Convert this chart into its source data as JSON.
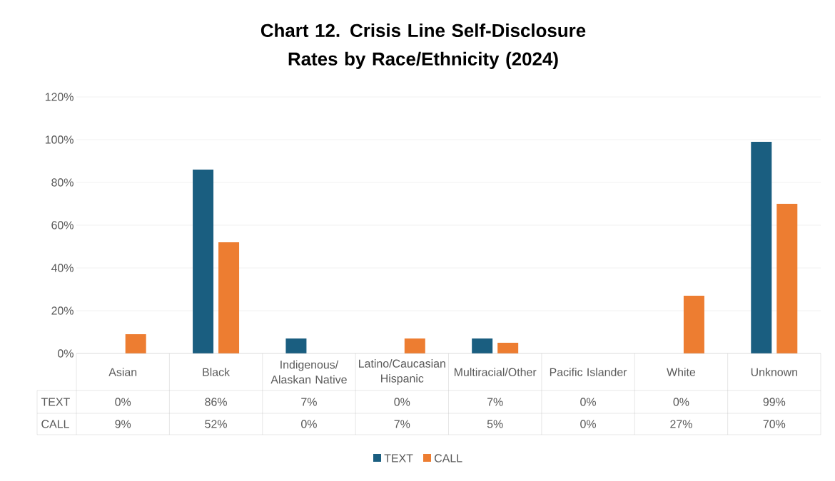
{
  "chart_data": {
    "type": "bar",
    "title": "Chart 12. Crisis Line Self-Disclosure Rates by Race/Ethnicity (2024)",
    "categories": [
      "Asian",
      "Black",
      "Indigenous/ Alaskan Native",
      "Latino/Caucasian Hispanic",
      "Multiracial/Other",
      "Pacific Islander",
      "White",
      "Unknown"
    ],
    "series": [
      {
        "name": "TEXT",
        "color": "#1a5e80",
        "values": [
          0,
          86,
          7,
          0,
          7,
          0,
          0,
          99
        ],
        "value_labels": [
          "0%",
          "86%",
          "7%",
          "0%",
          "7%",
          "0%",
          "0%",
          "99%"
        ]
      },
      {
        "name": "CALL",
        "color": "#ed7d31",
        "values": [
          9,
          52,
          0,
          7,
          5,
          0,
          27,
          70
        ],
        "value_labels": [
          "9%",
          "52%",
          "0%",
          "7%",
          "5%",
          "0%",
          "27%",
          "70%"
        ]
      }
    ],
    "ylim": [
      0,
      120
    ],
    "yticks": [
      {
        "value": 0,
        "label": "0%"
      },
      {
        "value": 20,
        "label": "20%"
      },
      {
        "value": 40,
        "label": "40%"
      },
      {
        "value": 60,
        "label": "60%"
      },
      {
        "value": 80,
        "label": "80%"
      },
      {
        "value": 100,
        "label": "100%"
      },
      {
        "value": 120,
        "label": "120%"
      }
    ],
    "grid": "y",
    "legend": "bottom"
  }
}
